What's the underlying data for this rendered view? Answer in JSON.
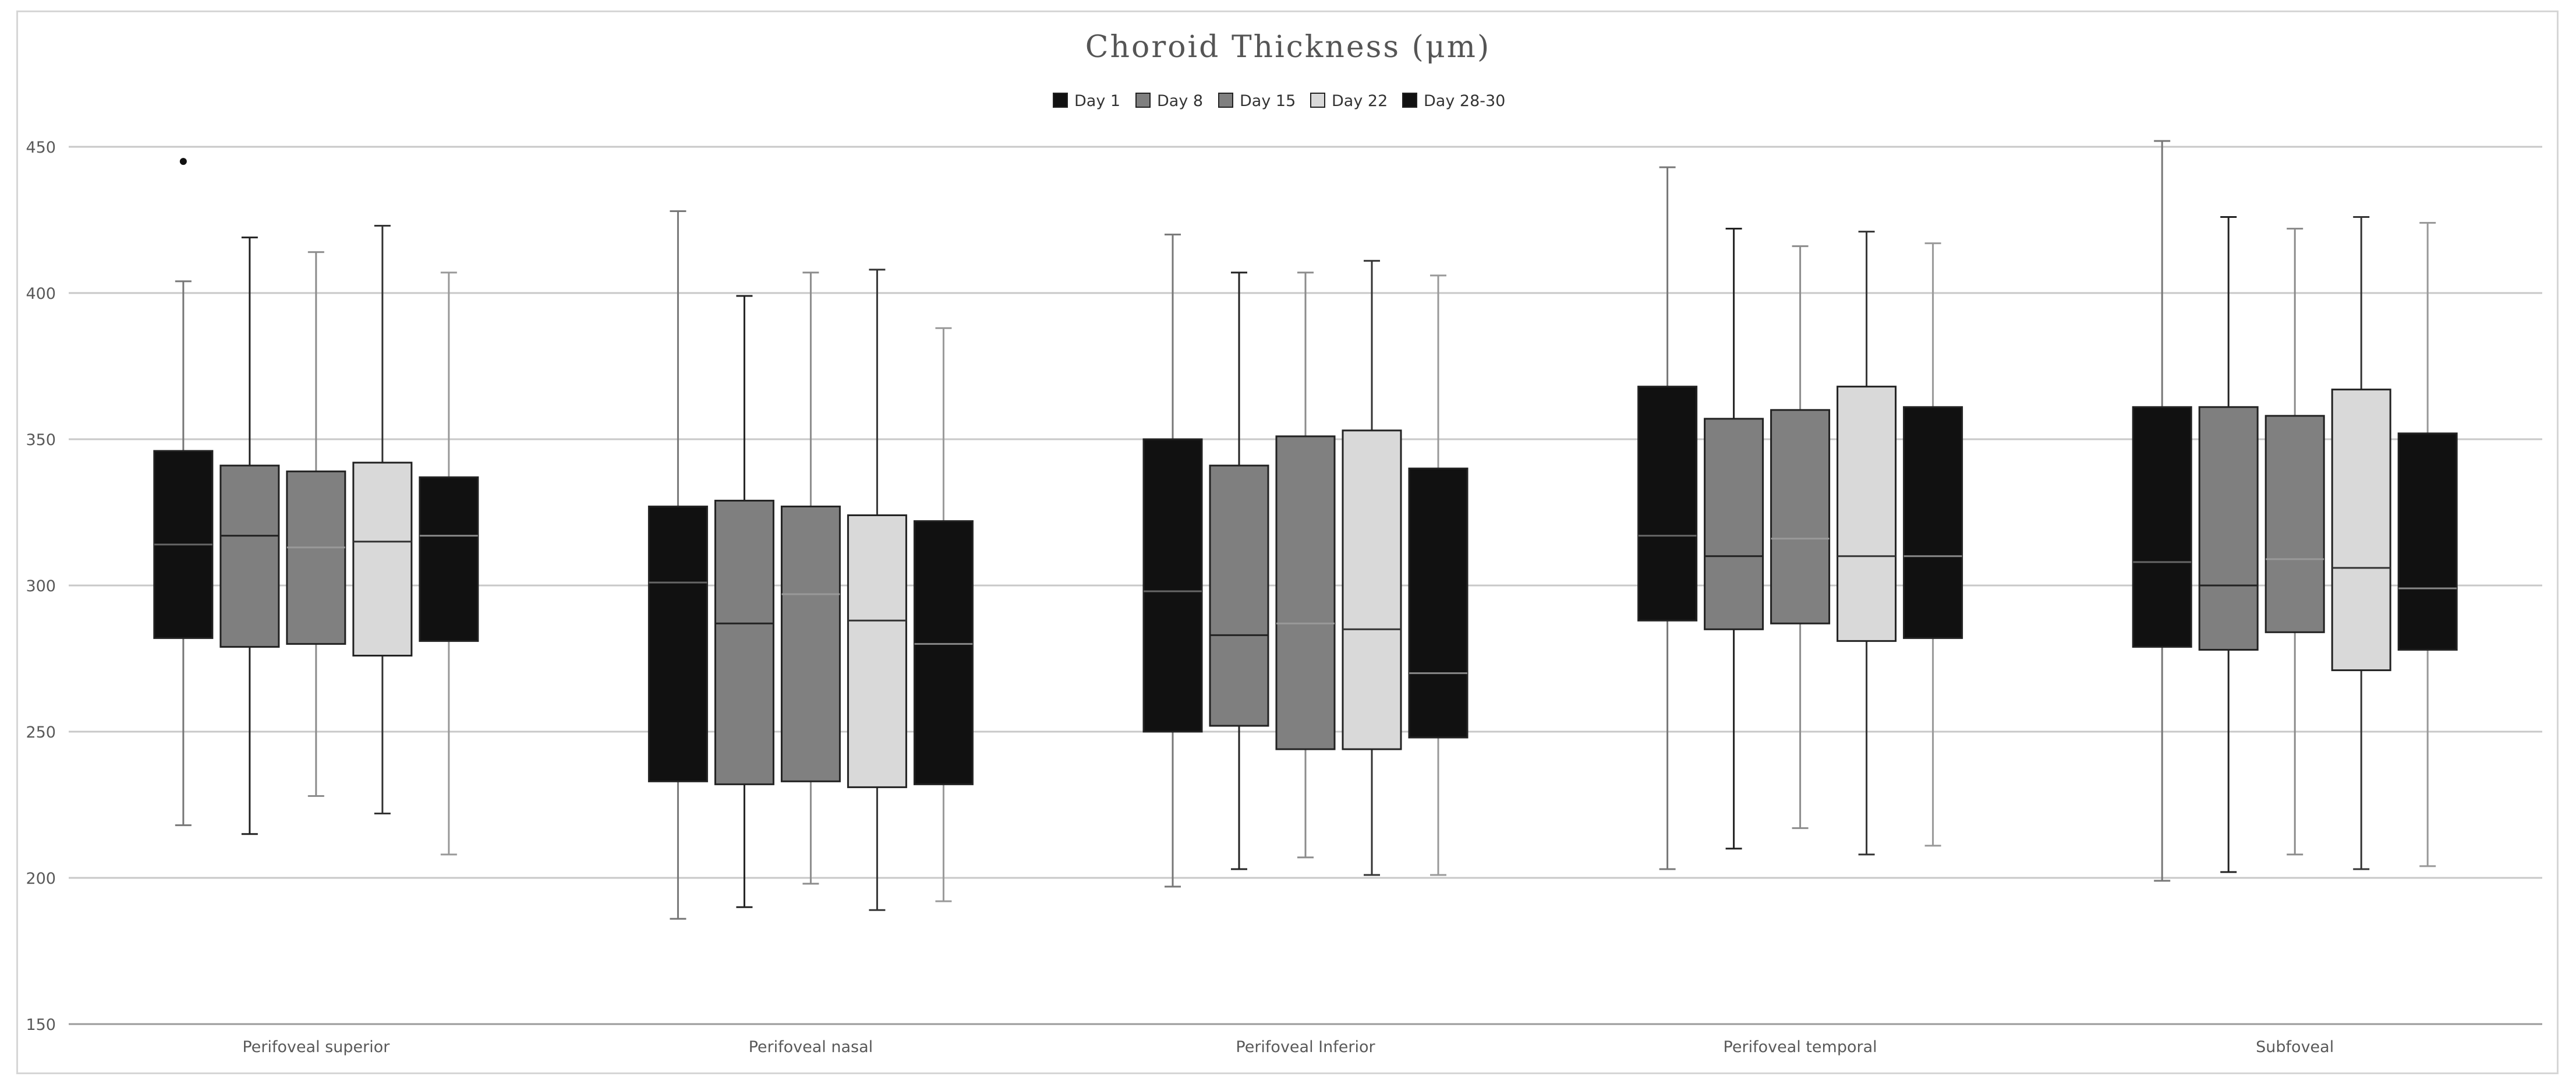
{
  "chart_data": {
    "type": "box",
    "title": "Choroid Thickness  (μm)",
    "xlabel": "",
    "ylabel": "",
    "ylim": [
      150,
      450
    ],
    "yticks": [
      150,
      200,
      250,
      300,
      350,
      400,
      450
    ],
    "grid": true,
    "legend_position": "top",
    "categories": [
      "Perifoveal superior",
      "Perifoveal nasal",
      "Perifoveal Inferior",
      "Perifoveal temporal",
      "Subfoveal"
    ],
    "series": [
      {
        "name": "Day 1",
        "fill": "#111111",
        "stroke": "#777777",
        "median_color": "#666666",
        "boxes": [
          {
            "min": 218,
            "q1": 282,
            "median": 314,
            "q3": 346,
            "max": 404,
            "outliers": [
              445
            ]
          },
          {
            "min": 186,
            "q1": 233,
            "median": 301,
            "q3": 327,
            "max": 428,
            "outliers": []
          },
          {
            "min": 197,
            "q1": 250,
            "median": 298,
            "q3": 350,
            "max": 420,
            "outliers": []
          },
          {
            "min": 203,
            "q1": 288,
            "median": 317,
            "q3": 368,
            "max": 443,
            "outliers": []
          },
          {
            "min": 199,
            "q1": 279,
            "median": 308,
            "q3": 361,
            "max": 452,
            "outliers": []
          }
        ]
      },
      {
        "name": "Day 8",
        "fill": "#7f7f7f",
        "stroke": "#222222",
        "median_color": "#222222",
        "boxes": [
          {
            "min": 215,
            "q1": 279,
            "median": 317,
            "q3": 341,
            "max": 419,
            "outliers": []
          },
          {
            "min": 190,
            "q1": 232,
            "median": 287,
            "q3": 329,
            "max": 399,
            "outliers": []
          },
          {
            "min": 203,
            "q1": 252,
            "median": 283,
            "q3": 341,
            "max": 407,
            "outliers": []
          },
          {
            "min": 210,
            "q1": 285,
            "median": 310,
            "q3": 357,
            "max": 422,
            "outliers": []
          },
          {
            "min": 202,
            "q1": 278,
            "median": 300,
            "q3": 361,
            "max": 426,
            "outliers": []
          }
        ]
      },
      {
        "name": "Day 15",
        "fill": "#808080",
        "stroke": "#8c8c8c",
        "median_color": "#999999",
        "boxes": [
          {
            "min": 228,
            "q1": 280,
            "median": 313,
            "q3": 339,
            "max": 414,
            "outliers": []
          },
          {
            "min": 198,
            "q1": 233,
            "median": 297,
            "q3": 327,
            "max": 407,
            "outliers": []
          },
          {
            "min": 207,
            "q1": 244,
            "median": 287,
            "q3": 351,
            "max": 407,
            "outliers": []
          },
          {
            "min": 217,
            "q1": 287,
            "median": 316,
            "q3": 360,
            "max": 416,
            "outliers": []
          },
          {
            "min": 208,
            "q1": 284,
            "median": 309,
            "q3": 358,
            "max": 422,
            "outliers": []
          }
        ]
      },
      {
        "name": "Day 22",
        "fill": "#d9d9d9",
        "stroke": "#333333",
        "median_color": "#333333",
        "boxes": [
          {
            "min": 222,
            "q1": 276,
            "median": 315,
            "q3": 342,
            "max": 423,
            "outliers": []
          },
          {
            "min": 189,
            "q1": 231,
            "median": 288,
            "q3": 324,
            "max": 408,
            "outliers": []
          },
          {
            "min": 201,
            "q1": 244,
            "median": 285,
            "q3": 353,
            "max": 411,
            "outliers": []
          },
          {
            "min": 208,
            "q1": 281,
            "median": 310,
            "q3": 368,
            "max": 421,
            "outliers": []
          },
          {
            "min": 203,
            "q1": 271,
            "median": 306,
            "q3": 367,
            "max": 426,
            "outliers": []
          }
        ]
      },
      {
        "name": "Day 28-30",
        "fill": "#111111",
        "stroke": "#999999",
        "median_color": "#888888",
        "boxes": [
          {
            "min": 208,
            "q1": 281,
            "median": 317,
            "q3": 337,
            "max": 407,
            "outliers": []
          },
          {
            "min": 192,
            "q1": 232,
            "median": 280,
            "q3": 322,
            "max": 388,
            "outliers": []
          },
          {
            "min": 201,
            "q1": 248,
            "median": 270,
            "q3": 340,
            "max": 406,
            "outliers": []
          },
          {
            "min": 211,
            "q1": 282,
            "median": 310,
            "q3": 361,
            "max": 417,
            "outliers": []
          },
          {
            "min": 204,
            "q1": 278,
            "median": 299,
            "q3": 352,
            "max": 424,
            "outliers": []
          }
        ]
      }
    ]
  }
}
